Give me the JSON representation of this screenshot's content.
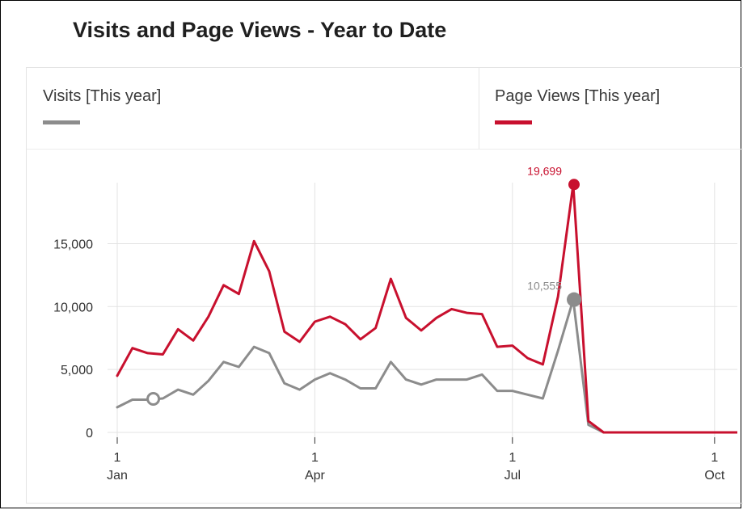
{
  "chart_data": {
    "type": "line",
    "title": "Visits and Page Views - Year to Date",
    "xlabel": "",
    "ylabel": "",
    "ylim": [
      0,
      20000
    ],
    "y_ticks": [
      0,
      5000,
      10000,
      15000
    ],
    "y_tick_labels": [
      "0",
      "5,000",
      "10,000",
      "15,000"
    ],
    "x_ticks": [
      {
        "week": 0,
        "day": "1",
        "month": "Jan"
      },
      {
        "week": 13,
        "day": "1",
        "month": "Apr"
      },
      {
        "week": 26,
        "day": "1",
        "month": "Jul"
      },
      {
        "week": 39.3,
        "day": "1",
        "month": "Oct"
      }
    ],
    "grid": "vertical",
    "legend_placement": "top",
    "series": [
      {
        "name": "Visits [This year]",
        "color": "#8c8c8c",
        "values": [
          2000,
          2600,
          2600,
          2700,
          3400,
          3000,
          4100,
          5600,
          5200,
          6800,
          6300,
          3900,
          3400,
          4200,
          4700,
          4200,
          3500,
          3500,
          5600,
          4200,
          3800,
          4200,
          4200,
          4200,
          4600,
          3300,
          3300,
          3000,
          2700,
          6500,
          10555,
          600,
          0,
          0,
          0,
          0,
          0,
          0,
          0,
          0,
          0,
          0,
          0,
          0,
          0,
          0,
          0,
          0
        ],
        "hollow_marker_index": 2,
        "annotation_index": 30,
        "annotation_label": "10,555"
      },
      {
        "name": "Page Views [This year]",
        "color": "#c8102e",
        "values": [
          4500,
          6700,
          6300,
          6200,
          8200,
          7300,
          9200,
          11700,
          11000,
          15200,
          12800,
          8000,
          7200,
          8800,
          9200,
          8600,
          7400,
          8300,
          12200,
          9100,
          8100,
          9100,
          9800,
          9500,
          9400,
          6800,
          6900,
          5900,
          5400,
          10800,
          19699,
          900,
          0,
          0,
          0,
          0,
          0,
          0,
          0,
          0,
          0,
          0,
          0,
          0,
          0,
          0,
          0,
          0
        ],
        "annotation_index": 30,
        "annotation_label": "19,699"
      }
    ]
  }
}
